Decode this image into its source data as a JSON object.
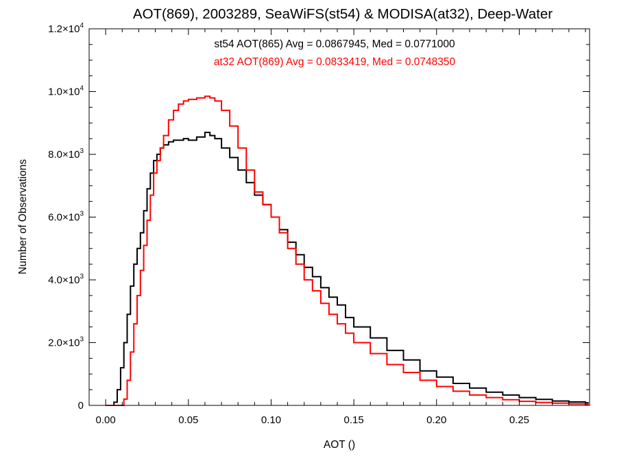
{
  "chart_data": {
    "type": "line",
    "step": true,
    "title": "AOT(869), 2003289, SeaWiFS(st54) & MODISA(at32), Deep-Water",
    "xlabel": "AOT ()",
    "ylabel": "Number of Observations",
    "xlim": [
      -0.01,
      0.2925
    ],
    "ylim": [
      0,
      12000
    ],
    "grid": false,
    "x_ticks": [
      {
        "value": 0.0,
        "label": "0.00"
      },
      {
        "value": 0.05,
        "label": "0.05"
      },
      {
        "value": 0.1,
        "label": "0.10"
      },
      {
        "value": 0.15,
        "label": "0.15"
      },
      {
        "value": 0.2,
        "label": "0.20"
      },
      {
        "value": 0.25,
        "label": "0.25"
      }
    ],
    "y_ticks": [
      {
        "value": 0,
        "mant": "0",
        "exp": ""
      },
      {
        "value": 2000,
        "mant": "2.0",
        "exp": "3"
      },
      {
        "value": 4000,
        "mant": "4.0",
        "exp": "3"
      },
      {
        "value": 6000,
        "mant": "6.0",
        "exp": "3"
      },
      {
        "value": 8000,
        "mant": "8.0",
        "exp": "3"
      },
      {
        "value": 10000,
        "mant": "1.0",
        "exp": "4"
      },
      {
        "value": 12000,
        "mant": "1.2",
        "exp": "4"
      }
    ],
    "annotations": [
      {
        "text": "st54 AOT(865) Avg = 0.0867945, Med = 0.0771000",
        "color": "#000000"
      },
      {
        "text": "at32 AOT(869) Avg = 0.0833419, Med = 0.0748350",
        "color": "#ff0000"
      }
    ],
    "series": [
      {
        "color": "#000000",
        "x": [
          0.0,
          0.003,
          0.005,
          0.007,
          0.009,
          0.011,
          0.013,
          0.015,
          0.017,
          0.019,
          0.021,
          0.023,
          0.025,
          0.027,
          0.029,
          0.031,
          0.033,
          0.035,
          0.038,
          0.041,
          0.044,
          0.047,
          0.05,
          0.055,
          0.06,
          0.063,
          0.066,
          0.07,
          0.075,
          0.08,
          0.085,
          0.09,
          0.095,
          0.1,
          0.105,
          0.11,
          0.115,
          0.12,
          0.125,
          0.13,
          0.135,
          0.14,
          0.145,
          0.15,
          0.16,
          0.17,
          0.18,
          0.19,
          0.2,
          0.21,
          0.22,
          0.23,
          0.24,
          0.25,
          0.26,
          0.27,
          0.28,
          0.29
        ],
        "values": [
          0,
          0,
          100,
          500,
          1200,
          2000,
          2900,
          3800,
          4500,
          5000,
          5500,
          6200,
          6900,
          7400,
          7800,
          8000,
          8200,
          8300,
          8400,
          8450,
          8450,
          8500,
          8450,
          8550,
          8700,
          8600,
          8500,
          8200,
          7900,
          7500,
          7100,
          6700,
          6400,
          6000,
          5600,
          5200,
          4800,
          4400,
          4100,
          3750,
          3450,
          3200,
          2800,
          2500,
          2150,
          1750,
          1450,
          1100,
          900,
          700,
          550,
          420,
          330,
          250,
          190,
          140,
          110,
          80
        ]
      },
      {
        "color": "#ff0000",
        "x": [
          0.0,
          0.005,
          0.007,
          0.009,
          0.011,
          0.013,
          0.015,
          0.017,
          0.019,
          0.021,
          0.023,
          0.025,
          0.027,
          0.029,
          0.031,
          0.033,
          0.035,
          0.038,
          0.041,
          0.044,
          0.047,
          0.05,
          0.055,
          0.06,
          0.063,
          0.066,
          0.07,
          0.075,
          0.08,
          0.085,
          0.09,
          0.095,
          0.1,
          0.105,
          0.11,
          0.115,
          0.12,
          0.125,
          0.13,
          0.135,
          0.14,
          0.145,
          0.15,
          0.16,
          0.17,
          0.18,
          0.19,
          0.2,
          0.21,
          0.22,
          0.23,
          0.24,
          0.25,
          0.26,
          0.27,
          0.28,
          0.29
        ],
        "values": [
          0,
          0,
          0,
          0,
          200,
          800,
          1700,
          2600,
          3500,
          4300,
          5100,
          5900,
          6700,
          7400,
          7800,
          8200,
          8600,
          9100,
          9400,
          9600,
          9700,
          9750,
          9800,
          9850,
          9800,
          9700,
          9400,
          8900,
          8200,
          7500,
          6800,
          6400,
          6000,
          5500,
          5000,
          4500,
          4000,
          3650,
          3250,
          2900,
          2600,
          2300,
          2000,
          1650,
          1300,
          1050,
          800,
          600,
          450,
          330,
          250,
          180,
          130,
          95,
          70,
          50,
          35
        ]
      }
    ]
  }
}
